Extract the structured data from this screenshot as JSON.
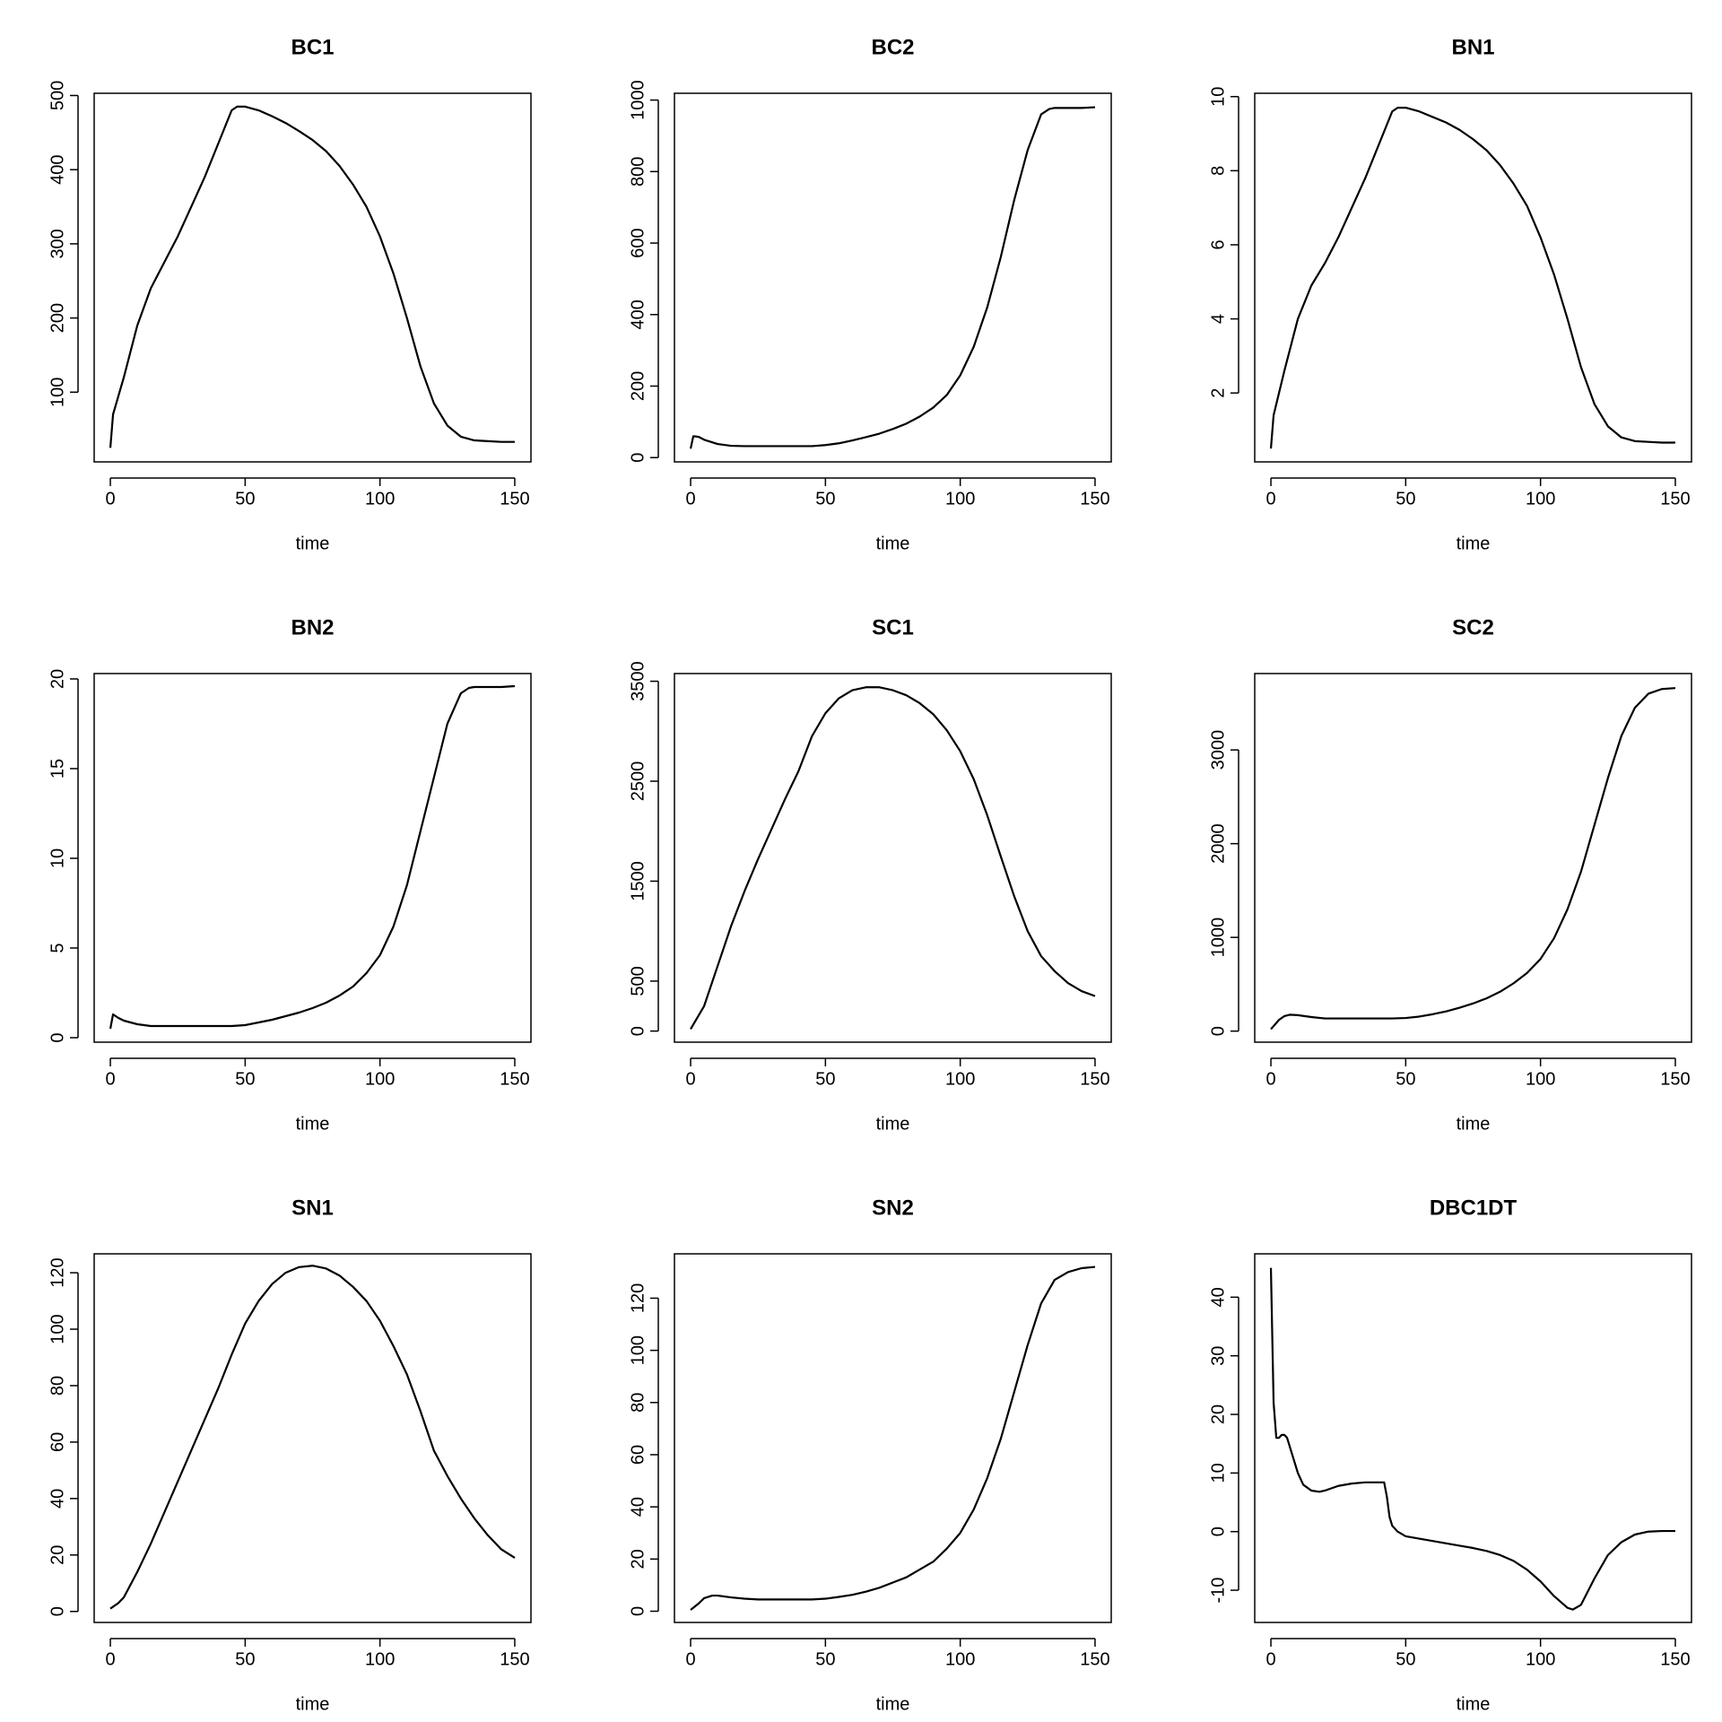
{
  "chart_data": [
    {
      "type": "line",
      "title": "BC1",
      "xlabel": "time",
      "color": "#000000",
      "x": [
        0,
        1,
        5,
        10,
        15,
        20,
        25,
        30,
        35,
        40,
        45,
        47,
        50,
        55,
        60,
        65,
        70,
        75,
        80,
        85,
        90,
        95,
        100,
        105,
        110,
        115,
        120,
        125,
        130,
        135,
        140,
        145,
        150
      ],
      "values": [
        25,
        70,
        120,
        190,
        240,
        275,
        310,
        350,
        390,
        435,
        480,
        485,
        485,
        480,
        472,
        463,
        452,
        440,
        425,
        405,
        380,
        350,
        310,
        260,
        200,
        135,
        85,
        55,
        40,
        35,
        34,
        33,
        33
      ],
      "xlim": [
        -6,
        156
      ],
      "ylim": [
        6,
        503
      ],
      "xticks": [
        0,
        50,
        100,
        150
      ],
      "yticks": [
        100,
        200,
        300,
        400,
        500
      ]
    },
    {
      "type": "line",
      "title": "BC2",
      "xlabel": "time",
      "color": "#000000",
      "x": [
        0,
        1,
        3,
        5,
        10,
        15,
        20,
        25,
        30,
        35,
        40,
        45,
        50,
        55,
        60,
        65,
        70,
        75,
        80,
        85,
        90,
        95,
        100,
        105,
        110,
        115,
        120,
        125,
        130,
        133,
        135,
        140,
        145,
        150
      ],
      "values": [
        25,
        60,
        58,
        50,
        38,
        33,
        32,
        32,
        32,
        32,
        32,
        32,
        35,
        40,
        48,
        57,
        67,
        80,
        95,
        115,
        140,
        175,
        230,
        310,
        420,
        560,
        720,
        860,
        960,
        975,
        978,
        978,
        978,
        980
      ],
      "xlim": [
        -6,
        156
      ],
      "ylim": [
        -12,
        1019
      ],
      "xticks": [
        0,
        50,
        100,
        150
      ],
      "yticks": [
        0,
        200,
        400,
        600,
        800,
        1000
      ]
    },
    {
      "type": "line",
      "title": "BN1",
      "xlabel": "time",
      "color": "#000000",
      "x": [
        0,
        1,
        5,
        10,
        15,
        20,
        25,
        30,
        35,
        40,
        45,
        47,
        50,
        55,
        60,
        65,
        70,
        75,
        80,
        85,
        90,
        95,
        100,
        105,
        110,
        115,
        120,
        125,
        130,
        135,
        140,
        145,
        150
      ],
      "values": [
        0.5,
        1.4,
        2.6,
        4.0,
        4.9,
        5.5,
        6.2,
        7.0,
        7.8,
        8.7,
        9.6,
        9.7,
        9.7,
        9.6,
        9.45,
        9.3,
        9.1,
        8.85,
        8.55,
        8.15,
        7.65,
        7.05,
        6.2,
        5.2,
        4.0,
        2.7,
        1.7,
        1.1,
        0.8,
        0.7,
        0.68,
        0.66,
        0.66
      ],
      "xlim": [
        -6,
        156
      ],
      "ylim": [
        0.14,
        10.09
      ],
      "xticks": [
        0,
        50,
        100,
        150
      ],
      "yticks": [
        2,
        4,
        6,
        8,
        10
      ]
    },
    {
      "type": "line",
      "title": "BN2",
      "xlabel": "time",
      "color": "#000000",
      "x": [
        0,
        1,
        3,
        5,
        10,
        15,
        20,
        25,
        30,
        35,
        40,
        45,
        50,
        55,
        60,
        65,
        70,
        75,
        80,
        85,
        90,
        95,
        100,
        105,
        110,
        115,
        120,
        125,
        130,
        133,
        135,
        140,
        145,
        150
      ],
      "values": [
        0.5,
        1.3,
        1.1,
        0.95,
        0.75,
        0.65,
        0.65,
        0.65,
        0.65,
        0.65,
        0.65,
        0.65,
        0.7,
        0.85,
        1.0,
        1.2,
        1.4,
        1.65,
        1.95,
        2.35,
        2.85,
        3.6,
        4.6,
        6.2,
        8.5,
        11.5,
        14.5,
        17.5,
        19.2,
        19.5,
        19.55,
        19.55,
        19.55,
        19.6
      ],
      "xlim": [
        -6,
        156
      ],
      "ylim": [
        -0.25,
        20.3
      ],
      "xticks": [
        0,
        50,
        100,
        150
      ],
      "yticks": [
        0,
        5,
        10,
        15,
        20
      ]
    },
    {
      "type": "line",
      "title": "SC1",
      "xlabel": "time",
      "color": "#000000",
      "x": [
        0,
        5,
        10,
        15,
        20,
        25,
        30,
        35,
        40,
        45,
        50,
        55,
        60,
        65,
        70,
        75,
        80,
        85,
        90,
        95,
        100,
        105,
        110,
        115,
        120,
        125,
        130,
        135,
        140,
        145,
        150
      ],
      "values": [
        20,
        250,
        650,
        1050,
        1400,
        1720,
        2020,
        2320,
        2600,
        2950,
        3180,
        3330,
        3410,
        3440,
        3440,
        3410,
        3360,
        3280,
        3170,
        3010,
        2800,
        2520,
        2160,
        1750,
        1350,
        1000,
        750,
        600,
        480,
        400,
        350
      ],
      "xlim": [
        -6,
        156
      ],
      "ylim": [
        -111,
        3577
      ],
      "xticks": [
        0,
        50,
        100,
        150
      ],
      "yticks": [
        0,
        500,
        1500,
        2500,
        3500
      ]
    },
    {
      "type": "line",
      "title": "SC2",
      "xlabel": "time",
      "color": "#000000",
      "x": [
        0,
        3,
        5,
        7,
        10,
        15,
        20,
        25,
        30,
        35,
        40,
        45,
        50,
        55,
        60,
        65,
        70,
        75,
        80,
        85,
        90,
        95,
        100,
        105,
        110,
        115,
        120,
        125,
        130,
        135,
        140,
        145,
        150
      ],
      "values": [
        20,
        120,
        160,
        175,
        170,
        150,
        135,
        135,
        135,
        135,
        135,
        135,
        140,
        155,
        180,
        210,
        250,
        295,
        350,
        420,
        510,
        620,
        770,
        990,
        1300,
        1700,
        2200,
        2700,
        3150,
        3450,
        3600,
        3650,
        3660
      ],
      "xlim": [
        -6,
        156
      ],
      "ylim": [
        -118,
        3815
      ],
      "xticks": [
        0,
        50,
        100,
        150
      ],
      "yticks": [
        0,
        1000,
        2000,
        3000
      ]
    },
    {
      "type": "line",
      "title": "SN1",
      "xlabel": "time",
      "color": "#000000",
      "x": [
        0,
        3,
        5,
        10,
        15,
        20,
        25,
        30,
        35,
        40,
        45,
        50,
        55,
        60,
        65,
        70,
        75,
        80,
        85,
        90,
        95,
        100,
        105,
        110,
        115,
        120,
        125,
        130,
        135,
        140,
        145,
        150
      ],
      "values": [
        1,
        3,
        5,
        14,
        24,
        35,
        46,
        57,
        68,
        79,
        91,
        102,
        110,
        116,
        120,
        122,
        122.5,
        121.5,
        119,
        115,
        110,
        103,
        94,
        84,
        71,
        57,
        48,
        40,
        33,
        27,
        22,
        19
      ],
      "xlim": [
        -6,
        156
      ],
      "ylim": [
        -3.9,
        126.7
      ],
      "xticks": [
        0,
        50,
        100,
        150
      ],
      "yticks": [
        0,
        20,
        40,
        60,
        80,
        100,
        120
      ]
    },
    {
      "type": "line",
      "title": "SN2",
      "xlabel": "time",
      "color": "#000000",
      "x": [
        0,
        3,
        5,
        8,
        10,
        15,
        20,
        25,
        30,
        35,
        40,
        45,
        50,
        55,
        60,
        65,
        70,
        75,
        80,
        85,
        90,
        95,
        100,
        105,
        110,
        115,
        120,
        125,
        130,
        135,
        140,
        145,
        150
      ],
      "values": [
        0.5,
        3,
        5,
        6,
        6,
        5.3,
        4.8,
        4.5,
        4.5,
        4.5,
        4.5,
        4.5,
        4.8,
        5.5,
        6.3,
        7.5,
        9,
        11,
        13,
        16,
        19,
        24,
        30,
        39,
        51,
        66,
        84,
        102,
        118,
        127,
        130,
        131.5,
        132
      ],
      "xlim": [
        -6,
        156
      ],
      "ylim": [
        -4.3,
        137
      ],
      "xticks": [
        0,
        50,
        100,
        150
      ],
      "yticks": [
        0,
        20,
        40,
        60,
        80,
        100,
        120
      ]
    },
    {
      "type": "line",
      "title": "DBC1DT",
      "xlabel": "time",
      "color": "#000000",
      "x": [
        0,
        1,
        2,
        3,
        4,
        5,
        6,
        7,
        10,
        12,
        15,
        18,
        20,
        25,
        30,
        35,
        40,
        42,
        43,
        44,
        45,
        47,
        50,
        55,
        60,
        65,
        70,
        75,
        80,
        85,
        90,
        95,
        100,
        105,
        110,
        112,
        115,
        120,
        125,
        130,
        135,
        140,
        145,
        150
      ],
      "values": [
        45,
        22,
        16,
        16,
        16.5,
        16.5,
        16,
        14.5,
        10,
        8,
        7,
        6.8,
        7,
        7.8,
        8.2,
        8.4,
        8.4,
        8.4,
        6,
        2.5,
        1,
        0,
        -0.8,
        -1.2,
        -1.6,
        -2,
        -2.4,
        -2.8,
        -3.3,
        -4,
        -5,
        -6.5,
        -8.5,
        -11,
        -13,
        -13.3,
        -12.5,
        -8,
        -4,
        -1.8,
        -0.5,
        0,
        0.1,
        0.1
      ],
      "xlim": [
        -6,
        156
      ],
      "ylim": [
        -15.5,
        47.4
      ],
      "xticks": [
        0,
        50,
        100,
        150
      ],
      "yticks": [
        -10,
        0,
        10,
        20,
        30,
        40
      ]
    }
  ]
}
